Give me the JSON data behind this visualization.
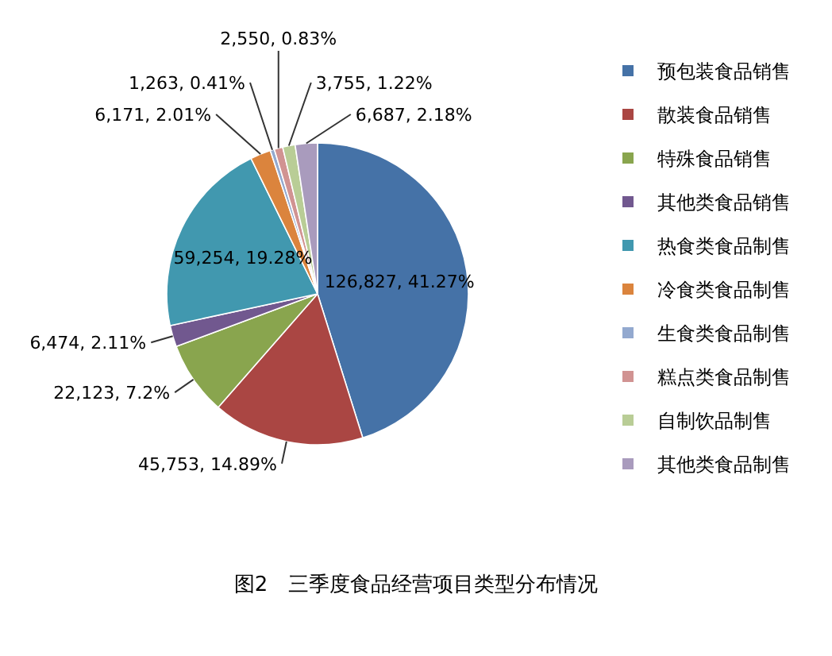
{
  "chart_data": {
    "type": "pie",
    "title": "图2　三季度食品经营项目类型分布情况",
    "categories": [
      "预包装食品销售",
      "散装食品销售",
      "特殊食品销售",
      "其他类食品销售",
      "热食类食品制售",
      "冷食类食品制售",
      "生食类食品制售",
      "糕点类食品制售",
      "自制饮品制售",
      "其他类食品制售"
    ],
    "values": [
      126827,
      45753,
      22123,
      6474,
      59254,
      6171,
      1263,
      2550,
      3755,
      6687
    ],
    "value_labels": [
      "126,827, 41.27%",
      "45,753, 14.89%",
      "22,123, 7.2%",
      "6,474, 2.11%",
      "59,254, 19.28%",
      "6,171, 2.01%",
      "1,263, 0.41%",
      "2,550, 0.83%",
      "3,755, 1.22%",
      "6,687, 2.18%"
    ],
    "colors": [
      "#4572a7",
      "#aa4643",
      "#89a54e",
      "#71588f",
      "#4198af",
      "#db843d",
      "#93a9cf",
      "#d19392",
      "#b9cd96",
      "#a99bbd"
    ],
    "legend": "right"
  }
}
